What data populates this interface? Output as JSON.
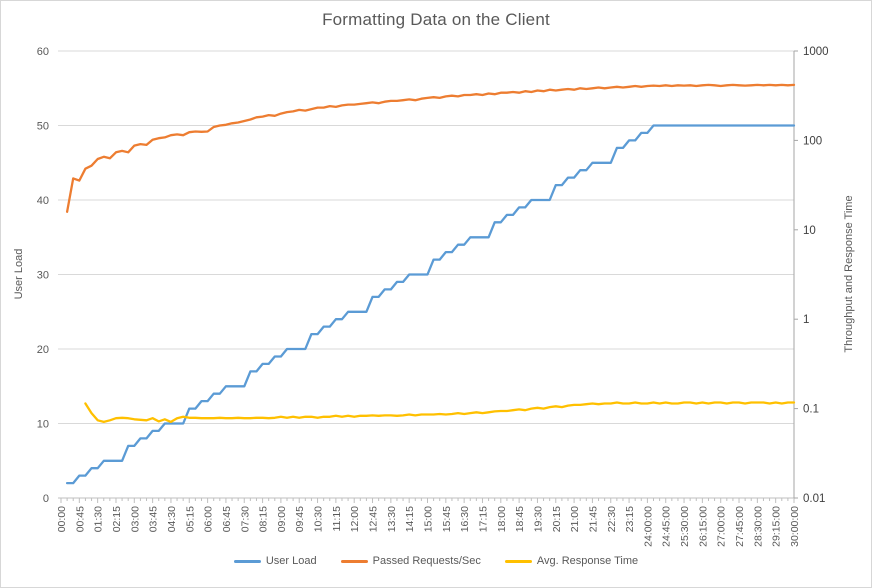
{
  "title": "Formatting Data on the Client",
  "colors": {
    "user_load": "#5B9BD5",
    "passed_requests": "#ED7D31",
    "avg_response": "#FFC000",
    "gridline": "#D9D9D9",
    "axis_line": "#BFBFBF",
    "right_axis_line": "#A6A6A6",
    "text": "#595959"
  },
  "chart_data": {
    "type": "line",
    "title": "Formatting Data on the Client",
    "grid": "horizontal",
    "legend_position": "bottom",
    "x_interval_seconds": 15,
    "x_start_seconds": 15,
    "x_max_seconds": 1800,
    "x_label_interval_seconds": 45,
    "x_tick_labels": [
      "00:00",
      "00:45",
      "01:30",
      "02:15",
      "03:00",
      "03:45",
      "04:30",
      "05:15",
      "06:00",
      "06:45",
      "07:30",
      "08:15",
      "09:00",
      "09:45",
      "10:30",
      "11:15",
      "12:00",
      "12:45",
      "13:30",
      "14:15",
      "15:00",
      "15:45",
      "16:30",
      "17:15",
      "18:00",
      "18:45",
      "19:30",
      "20:15",
      "21:00",
      "21:45",
      "22:30",
      "23:15",
      "24:00:00",
      "24:45:00",
      "25:30:00",
      "26:15:00",
      "27:00:00",
      "27:45:00",
      "28:30:00",
      "29:15:00",
      "30:00:00"
    ],
    "left_axis": {
      "label": "User Load",
      "min": 0,
      "max": 60,
      "ticks": [
        0,
        10,
        20,
        30,
        40,
        50,
        60
      ]
    },
    "right_axis": {
      "label": "Throughput and Response Time",
      "scale": "log",
      "min": 0.01,
      "max": 1000,
      "ticks": [
        "0.01",
        "0.1",
        "1",
        "10",
        "100",
        "1000"
      ]
    },
    "series": [
      {
        "name": "User Load",
        "axis": "left",
        "color": "#5B9BD5",
        "values": [
          2,
          2,
          3,
          3,
          4,
          4,
          5,
          5,
          5,
          5,
          7,
          7,
          8,
          8,
          9,
          9,
          10,
          10,
          10,
          10,
          12,
          12,
          13,
          13,
          14,
          14,
          15,
          15,
          15,
          15,
          17,
          17,
          18,
          18,
          19,
          19,
          20,
          20,
          20,
          20,
          22,
          22,
          23,
          23,
          24,
          24,
          25,
          25,
          25,
          25,
          27,
          27,
          28,
          28,
          29,
          29,
          30,
          30,
          30,
          30,
          32,
          32,
          33,
          33,
          34,
          34,
          35,
          35,
          35,
          35,
          37,
          37,
          38,
          38,
          39,
          39,
          40,
          40,
          40,
          40,
          42,
          42,
          43,
          43,
          44,
          44,
          45,
          45,
          45,
          45,
          47,
          47,
          48,
          48,
          49,
          49,
          50,
          50,
          50,
          50,
          50,
          50,
          50,
          50,
          50,
          50,
          50,
          50,
          50,
          50,
          50,
          50,
          50,
          50,
          50,
          50,
          50,
          50,
          50,
          50
        ]
      },
      {
        "name": "Passed Requests/Sec",
        "axis": "right",
        "color": "#ED7D31",
        "values": [
          15.9,
          37.6,
          35.5,
          48.2,
          52.1,
          61.9,
          65.6,
          63.1,
          73.6,
          76.4,
          73.6,
          87.4,
          90.9,
          89.1,
          101.9,
          105.9,
          108.0,
          114.4,
          116.6,
          114.4,
          123.5,
          125.9,
          124.7,
          125.9,
          141.3,
          146.8,
          149.6,
          155.5,
          158.5,
          164.7,
          171.1,
          181.3,
          184.8,
          192.0,
          188.4,
          199.5,
          207.3,
          211.3,
          219.6,
          215.4,
          223.9,
          232.6,
          232.6,
          241.7,
          237.1,
          246.4,
          251.2,
          251.2,
          256.1,
          261.0,
          266.1,
          261.0,
          271.2,
          276.5,
          276.5,
          281.8,
          287.3,
          281.8,
          292.9,
          298.5,
          304.3,
          298.5,
          310.2,
          316.2,
          310.2,
          322.3,
          322.3,
          328.6,
          322.3,
          335.0,
          328.6,
          341.5,
          341.5,
          348.1,
          341.5,
          354.8,
          348.1,
          361.7,
          354.8,
          368.7,
          361.7,
          368.7,
          375.8,
          368.7,
          383.1,
          375.8,
          383.1,
          390.5,
          383.1,
          390.5,
          398.1,
          390.5,
          398.1,
          405.8,
          398.1,
          405.8,
          409.7,
          405.8,
          413.6,
          405.8,
          413.6,
          409.7,
          413.6,
          405.8,
          413.6,
          417.6,
          413.6,
          405.8,
          413.6,
          417.6,
          413.6,
          409.7,
          413.6,
          417.6,
          413.6,
          417.6,
          413.6,
          417.6,
          413.6,
          417.6
        ]
      },
      {
        "name": "Avg. Response Time",
        "axis": "right",
        "color": "#FFC000",
        "values": [
          null,
          null,
          null,
          0.114,
          0.089,
          0.074,
          0.071,
          0.074,
          0.078,
          0.079,
          0.078,
          0.076,
          0.075,
          0.074,
          0.078,
          0.072,
          0.076,
          0.071,
          0.078,
          0.081,
          0.079,
          0.079,
          0.078,
          0.078,
          0.078,
          0.079,
          0.078,
          0.078,
          0.079,
          0.078,
          0.078,
          0.079,
          0.079,
          0.078,
          0.079,
          0.081,
          0.079,
          0.081,
          0.079,
          0.081,
          0.081,
          0.079,
          0.081,
          0.081,
          0.083,
          0.081,
          0.083,
          0.081,
          0.083,
          0.083,
          0.084,
          0.083,
          0.084,
          0.084,
          0.083,
          0.084,
          0.086,
          0.084,
          0.086,
          0.086,
          0.086,
          0.087,
          0.086,
          0.087,
          0.089,
          0.087,
          0.089,
          0.091,
          0.089,
          0.091,
          0.093,
          0.094,
          0.094,
          0.096,
          0.098,
          0.096,
          0.1,
          0.102,
          0.1,
          0.104,
          0.106,
          0.104,
          0.108,
          0.11,
          0.11,
          0.112,
          0.114,
          0.112,
          0.114,
          0.114,
          0.117,
          0.114,
          0.114,
          0.117,
          0.114,
          0.114,
          0.117,
          0.114,
          0.117,
          0.114,
          0.114,
          0.117,
          0.117,
          0.114,
          0.117,
          0.114,
          0.117,
          0.117,
          0.114,
          0.117,
          0.117,
          0.114,
          0.117,
          0.117,
          0.117,
          0.114,
          0.117,
          0.114,
          0.117,
          0.117
        ]
      }
    ]
  }
}
